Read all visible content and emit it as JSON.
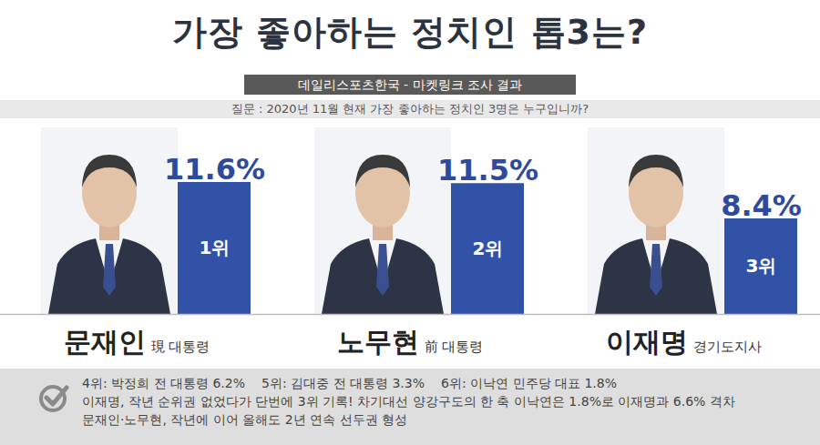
{
  "chart_data": {
    "type": "bar",
    "title": "가장 좋아하는 정치인 톱3는?",
    "subtitle": "데일리스포츠한국 - 마켓링크 조사 결과",
    "question": "질문 :  2020년 11월 현재 가장 좋아하는 정치인 3명은 누구입니까?",
    "categories": [
      "문재인",
      "노무현",
      "이재명"
    ],
    "roles": [
      "現 대통령",
      "前 대통령",
      "경기도지사"
    ],
    "ranks": [
      "1위",
      "2위",
      "3위"
    ],
    "values": [
      11.6,
      11.5,
      8.4
    ],
    "value_labels": [
      "11.6%",
      "11.5%",
      "8.4%"
    ],
    "data_labels": true,
    "color": "#3252a8",
    "ylim": [
      0,
      12
    ],
    "yticks": [
      0
    ],
    "grid": false,
    "tick_labels": false,
    "others": [
      "4위: 박정희 전 대통령 6.2%",
      "5위: 김대중 전 대통령 3.3%",
      "6위: 이낙연 민주당 대표 1.8%"
    ],
    "notes": [
      "이재명, 작년 순위권 없었다가 단번에 3위 기록!  차기대선 양강구도의 한 축 이낙연은 1.8%로  이재명과 6.6% 격차",
      "문재인·노무현, 작년에 이어 올해도 2년 연속 선두권 형성"
    ]
  }
}
